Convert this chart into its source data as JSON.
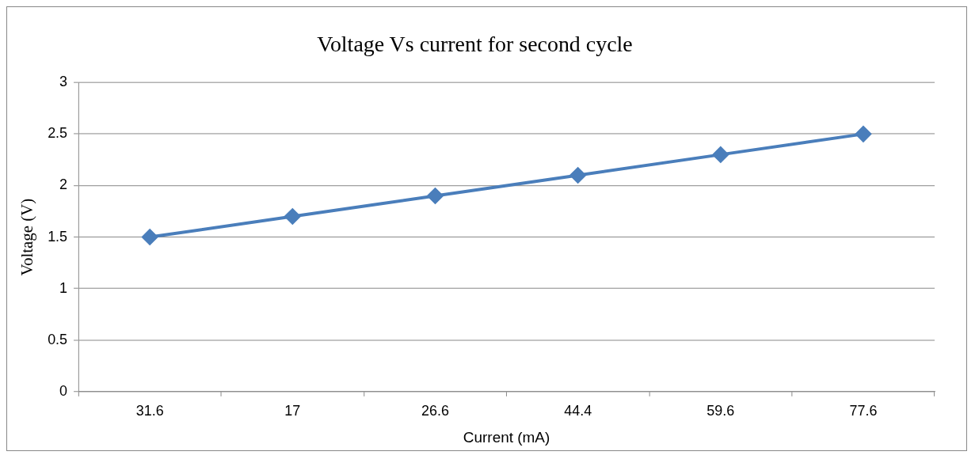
{
  "chart_data": {
    "type": "line",
    "title": "Voltage Vs current for second cycle",
    "xlabel": "Current (mA)",
    "ylabel": "Voltage (V)",
    "categories": [
      "31.6",
      "17",
      "26.6",
      "44.4",
      "59.6",
      "77.6"
    ],
    "series": [
      {
        "color": "#4a7ebb",
        "values": [
          1.5,
          1.7,
          1.9,
          2.1,
          2.3,
          2.5
        ]
      }
    ],
    "ylim": [
      0,
      3
    ],
    "yticks": [
      0,
      0.5,
      1,
      1.5,
      2,
      2.5,
      3
    ],
    "grid": "y",
    "legend": false,
    "marker": "diamond",
    "line_style": "solid"
  }
}
